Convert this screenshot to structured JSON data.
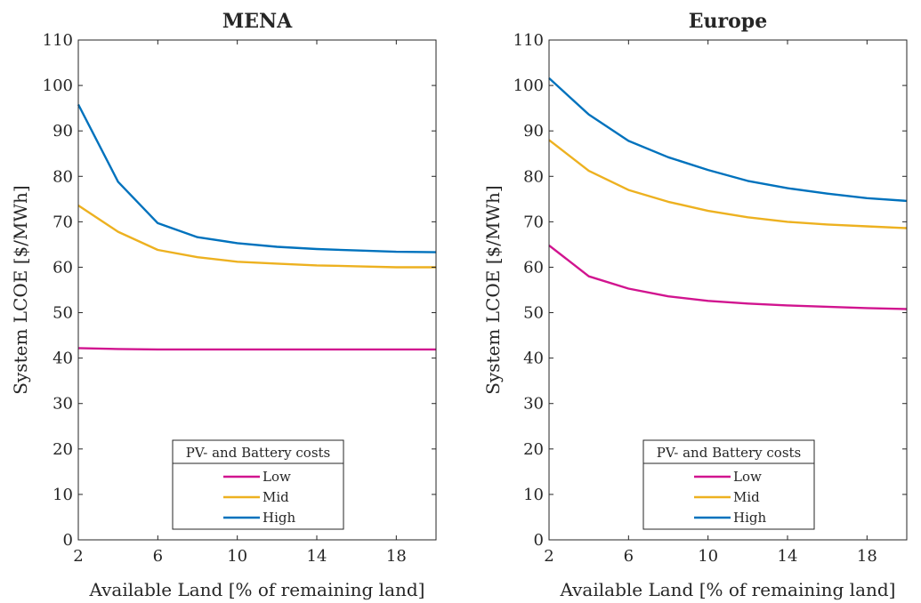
{
  "chart_data": [
    {
      "type": "line",
      "title": "MENA",
      "xlabel": "Available Land [% of remaining land]",
      "ylabel": "System LCOE [$/MWh]",
      "xlim": [
        2,
        20
      ],
      "ylim": [
        0,
        110
      ],
      "xticks": [
        2,
        6,
        10,
        14,
        18
      ],
      "yticks": [
        0,
        10,
        20,
        30,
        40,
        50,
        60,
        70,
        80,
        90,
        100,
        110
      ],
      "x": [
        2,
        4,
        6,
        8,
        10,
        12,
        14,
        16,
        18,
        20
      ],
      "legend_title": "PV- and Battery costs",
      "legend_position": "bottom-center",
      "grid": false,
      "series": [
        {
          "name": "Low",
          "color": "#d1148f",
          "values": [
            42.2,
            42.0,
            41.9,
            41.9,
            41.9,
            41.9,
            41.9,
            41.9,
            41.9,
            41.9
          ]
        },
        {
          "name": "Mid",
          "color": "#edb120",
          "values": [
            73.6,
            67.8,
            63.8,
            62.2,
            61.2,
            60.8,
            60.4,
            60.2,
            60.0,
            60.0
          ]
        },
        {
          "name": "High",
          "color": "#0072bd",
          "values": [
            95.8,
            78.8,
            69.7,
            66.6,
            65.3,
            64.5,
            64.0,
            63.7,
            63.4,
            63.3
          ]
        }
      ]
    },
    {
      "type": "line",
      "title": "Europe",
      "xlabel": "Available Land [% of remaining land]",
      "ylabel": "System LCOE [$/MWh]",
      "xlim": [
        2,
        20
      ],
      "ylim": [
        0,
        110
      ],
      "xticks": [
        2,
        6,
        10,
        14,
        18
      ],
      "yticks": [
        0,
        10,
        20,
        30,
        40,
        50,
        60,
        70,
        80,
        90,
        100,
        110
      ],
      "x": [
        2,
        4,
        6,
        8,
        10,
        12,
        14,
        16,
        18,
        20
      ],
      "legend_title": "PV- and Battery costs",
      "legend_position": "bottom-center",
      "grid": false,
      "series": [
        {
          "name": "Low",
          "color": "#d1148f",
          "values": [
            64.8,
            58.0,
            55.3,
            53.6,
            52.6,
            52.0,
            51.6,
            51.3,
            51.0,
            50.8
          ]
        },
        {
          "name": "Mid",
          "color": "#edb120",
          "values": [
            88.0,
            81.2,
            77.0,
            74.4,
            72.4,
            71.0,
            70.0,
            69.4,
            69.0,
            68.6
          ]
        },
        {
          "name": "High",
          "color": "#0072bd",
          "values": [
            101.6,
            93.6,
            87.8,
            84.2,
            81.4,
            79.0,
            77.4,
            76.2,
            75.2,
            74.6
          ]
        }
      ]
    }
  ]
}
